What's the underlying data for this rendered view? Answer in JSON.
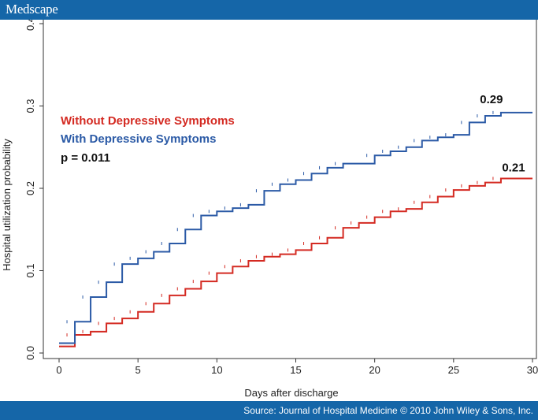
{
  "header": {
    "brand": "Medscape"
  },
  "footer": {
    "source": "Source: Journal of Hospital Medicine © 2010 John Wiley & Sons, Inc."
  },
  "colors": {
    "bar": "#1566a8",
    "red_series": "#d42a22",
    "blue_series": "#2b5aa6"
  },
  "chart_data": {
    "type": "line",
    "step": true,
    "xlabel": "Days after discharge",
    "ylabel": "Hospital utilization probability",
    "xlim": [
      0,
      30
    ],
    "ylim": [
      0,
      0.4
    ],
    "xticks": [
      0,
      5,
      10,
      15,
      20,
      25,
      30
    ],
    "yticks": [
      0.0,
      0.1,
      0.2,
      0.3,
      0.4
    ],
    "ytick_labels": [
      "0.0",
      "0.1",
      "0.2",
      "0.3",
      "0.4"
    ],
    "grid": false,
    "legend": {
      "placement": "upper-left",
      "entries": [
        {
          "label": "Without Depressive Symptoms",
          "color": "#d42a22"
        },
        {
          "label": "With Depressive Symptoms",
          "color": "#2b5aa6"
        }
      ]
    },
    "annotations": {
      "pvalue": "p = 0.011",
      "blue_end": "0.29",
      "red_end": "0.21"
    },
    "series": [
      {
        "name": "Without Depressive Symptoms",
        "color": "#d42a22",
        "x": [
          0,
          1,
          2,
          3,
          4,
          5,
          6,
          7,
          8,
          9,
          10,
          11,
          12,
          13,
          14,
          15,
          16,
          17,
          18,
          19,
          20,
          21,
          22,
          23,
          24,
          25,
          26,
          27,
          28,
          30
        ],
        "y": [
          0.008,
          0.022,
          0.026,
          0.036,
          0.042,
          0.05,
          0.06,
          0.07,
          0.078,
          0.087,
          0.097,
          0.105,
          0.112,
          0.117,
          0.12,
          0.125,
          0.133,
          0.14,
          0.152,
          0.158,
          0.165,
          0.172,
          0.175,
          0.183,
          0.19,
          0.198,
          0.203,
          0.207,
          0.212,
          0.212
        ]
      },
      {
        "name": "With Depressive Symptoms",
        "color": "#2b5aa6",
        "x": [
          0,
          1,
          2,
          3,
          4,
          5,
          6,
          7,
          8,
          9,
          10,
          11,
          12,
          13,
          14,
          15,
          16,
          17,
          18,
          20,
          21,
          22,
          23,
          24,
          25,
          26,
          27,
          28,
          30
        ],
        "y": [
          0.012,
          0.038,
          0.068,
          0.086,
          0.108,
          0.115,
          0.123,
          0.133,
          0.15,
          0.167,
          0.172,
          0.176,
          0.18,
          0.197,
          0.205,
          0.21,
          0.218,
          0.225,
          0.23,
          0.24,
          0.245,
          0.25,
          0.258,
          0.262,
          0.265,
          0.28,
          0.288,
          0.292,
          0.292
        ]
      }
    ]
  }
}
